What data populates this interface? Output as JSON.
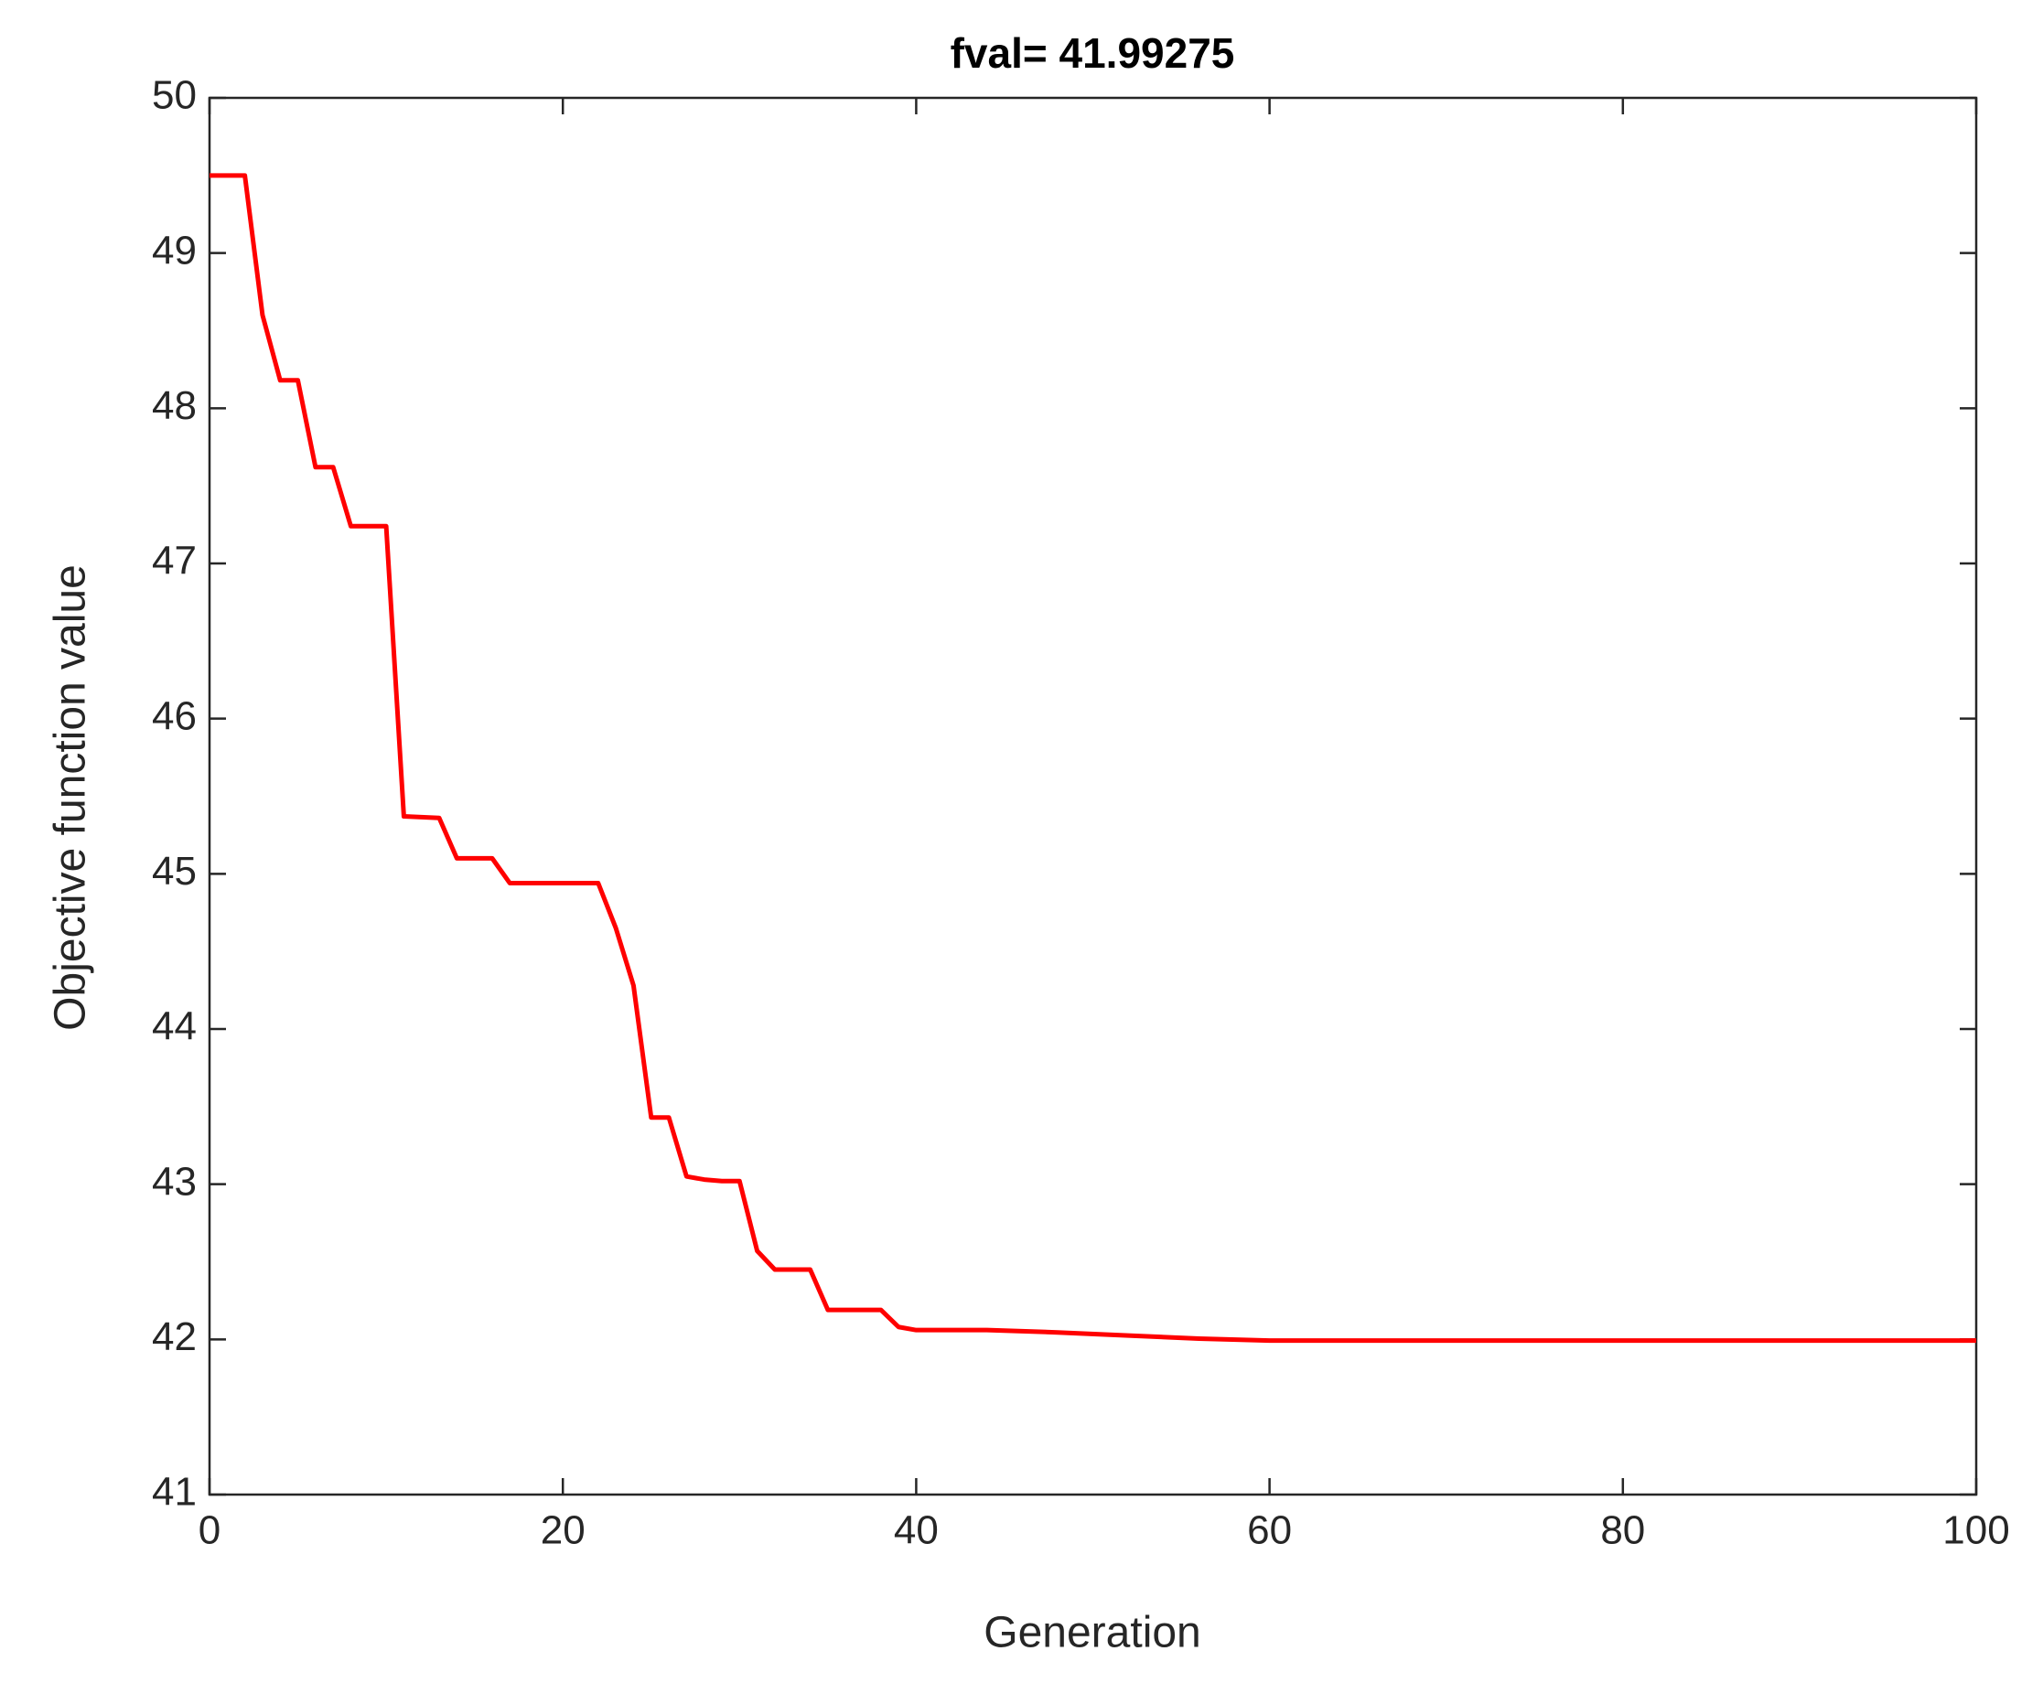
{
  "chart_data": {
    "type": "line",
    "title": "fval= 41.99275",
    "x_label": "Generation",
    "y_label": "Objective function value",
    "x": [
      0,
      2,
      3,
      4,
      5,
      6,
      7,
      8,
      10,
      11,
      13,
      14,
      16,
      17,
      22,
      23,
      24,
      25,
      26,
      27,
      28,
      29,
      30,
      31,
      32,
      34,
      35,
      38,
      39,
      40,
      44,
      48,
      52,
      56,
      60,
      100
    ],
    "series": [
      {
        "name": "fval",
        "color": "#ff0000",
        "values": [
          49.5,
          49.5,
          48.6,
          48.18,
          48.18,
          47.62,
          47.62,
          47.24,
          47.24,
          45.37,
          45.36,
          45.1,
          45.1,
          44.94,
          44.94,
          44.65,
          44.28,
          43.43,
          43.43,
          43.05,
          43.03,
          43.02,
          43.02,
          42.57,
          42.45,
          42.45,
          42.19,
          42.19,
          42.08,
          42.06,
          42.06,
          42.045,
          42.025,
          42.005,
          41.99275,
          41.99275
        ]
      }
    ],
    "xlim": [
      0,
      100
    ],
    "xticks": [
      0,
      20,
      40,
      60,
      80,
      100
    ],
    "ylim": [
      41,
      50
    ],
    "yticks": [
      41,
      42,
      43,
      44,
      45,
      46,
      47,
      48,
      49,
      50
    ],
    "grid": false
  }
}
